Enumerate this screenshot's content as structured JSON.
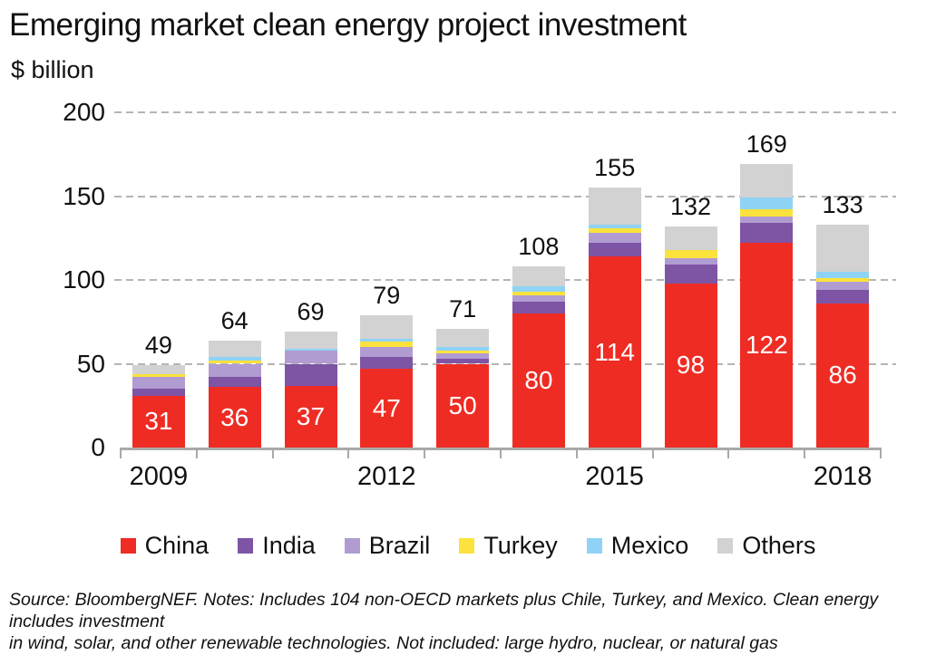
{
  "header": {
    "title": "Emerging market clean energy project investment",
    "unit_label": "$ billion"
  },
  "chart_data": {
    "type": "bar",
    "stacked": true,
    "title": "Emerging market clean energy project investment",
    "ylabel": "$ billion",
    "xlabel": "",
    "ylim": [
      0,
      200
    ],
    "y_ticks": [
      0,
      50,
      100,
      150,
      200
    ],
    "grid": "horizontal-dashed",
    "legend_position": "bottom",
    "categories": [
      "2009",
      "2010",
      "2011",
      "2012",
      "2013",
      "2014",
      "2015",
      "2016",
      "2017",
      "2018"
    ],
    "x_axis_labels_shown": [
      "2009",
      "2012",
      "2015",
      "2018"
    ],
    "series": [
      {
        "name": "China",
        "color": "#ee2c24",
        "values": [
          31,
          36,
          37,
          47,
          50,
          80,
          114,
          98,
          122,
          86
        ]
      },
      {
        "name": "India",
        "color": "#7e54a5",
        "values": [
          4,
          6,
          13,
          7,
          3,
          7,
          8,
          11,
          12,
          8
        ]
      },
      {
        "name": "Brazil",
        "color": "#b19cd2",
        "values": [
          7,
          8,
          8,
          6,
          3,
          4,
          6,
          4,
          4,
          5
        ]
      },
      {
        "name": "Turkey",
        "color": "#fce23c",
        "values": [
          2,
          2,
          0,
          3,
          2,
          2,
          3,
          5,
          4,
          2
        ]
      },
      {
        "name": "Mexico",
        "color": "#8ed3f5",
        "values": [
          0,
          2,
          1,
          2,
          2,
          3,
          2,
          0,
          7,
          4
        ]
      },
      {
        "name": "Others",
        "color": "#d2d2d2",
        "values": [
          5,
          10,
          10,
          14,
          11,
          12,
          22,
          14,
          20,
          28
        ]
      }
    ],
    "totals": [
      49,
      64,
      69,
      79,
      71,
      108,
      155,
      132,
      169,
      133
    ],
    "inside_bar_labels": {
      "series": "China",
      "color": "#ffffff",
      "values": [
        31,
        36,
        37,
        47,
        50,
        80,
        114,
        98,
        122,
        86
      ]
    }
  },
  "legend": {
    "items": [
      {
        "label": "China",
        "color": "#ee2c24"
      },
      {
        "label": "India",
        "color": "#7e54a5"
      },
      {
        "label": "Brazil",
        "color": "#b19cd2"
      },
      {
        "label": "Turkey",
        "color": "#fce23c"
      },
      {
        "label": "Mexico",
        "color": "#8ed3f5"
      },
      {
        "label": "Others",
        "color": "#d2d2d2"
      }
    ]
  },
  "footer": {
    "source_line1": "Source: BloombergNEF. Notes: Includes 104 non-OECD markets plus Chile, Turkey, and Mexico. Clean energy includes investment",
    "source_line2": "in wind, solar, and other renewable technologies. Not included: large hydro, nuclear, or natural gas"
  },
  "colors": {
    "gridline": "#b5b5b5",
    "axis": "#a9a9a9",
    "background": "#ffffff",
    "text": "#111111"
  }
}
